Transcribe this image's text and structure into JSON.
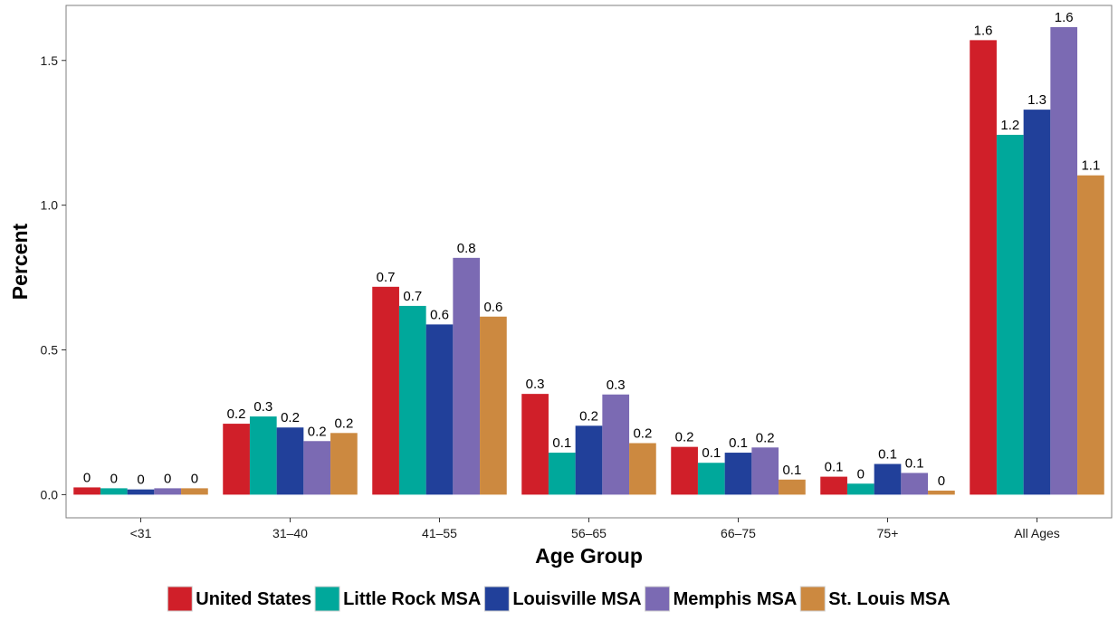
{
  "chart_data": {
    "type": "bar",
    "title": "",
    "xlabel": "Age Group",
    "ylabel": "Percent",
    "ylim": [
      -0.08,
      1.69
    ],
    "yticks": [
      0.0,
      0.5,
      1.0,
      1.5
    ],
    "ytick_labels": [
      "0.0",
      "0.5",
      "1.0",
      "1.5"
    ],
    "grid": false,
    "legend_position": "bottom",
    "categories": [
      "<31",
      "31–40",
      "41–55",
      "56–65",
      "66–75",
      "75+",
      "All Ages"
    ],
    "series": [
      {
        "name": "United States",
        "color": "#D01F29",
        "values": [
          0.025,
          0.245,
          0.718,
          0.348,
          0.165,
          0.062,
          1.57
        ],
        "labels": [
          "0",
          "0.2",
          "0.7",
          "0.3",
          "0.2",
          "0.1",
          "1.6"
        ]
      },
      {
        "name": "Little Rock MSA",
        "color": "#00A89B",
        "values": [
          0.022,
          0.27,
          0.652,
          0.145,
          0.11,
          0.038,
          1.243
        ],
        "labels": [
          "0",
          "0.3",
          "0.7",
          "0.1",
          "0.1",
          "0",
          "1.2"
        ]
      },
      {
        "name": "Louisville MSA",
        "color": "#21409A",
        "values": [
          0.018,
          0.232,
          0.588,
          0.238,
          0.145,
          0.106,
          1.33
        ],
        "labels": [
          "0",
          "0.2",
          "0.6",
          "0.2",
          "0.1",
          "0.1",
          "1.3"
        ]
      },
      {
        "name": "Memphis MSA",
        "color": "#7B6AB3",
        "values": [
          0.022,
          0.185,
          0.818,
          0.346,
          0.163,
          0.075,
          1.615
        ],
        "labels": [
          "0",
          "0.2",
          "0.8",
          "0.3",
          "0.2",
          "0.1",
          "1.6"
        ]
      },
      {
        "name": "St. Louis MSA",
        "color": "#CC8940",
        "values": [
          0.022,
          0.213,
          0.615,
          0.178,
          0.052,
          0.014,
          1.103
        ],
        "labels": [
          "0",
          "0.2",
          "0.6",
          "0.2",
          "0.1",
          "0",
          "1.1"
        ]
      }
    ]
  }
}
